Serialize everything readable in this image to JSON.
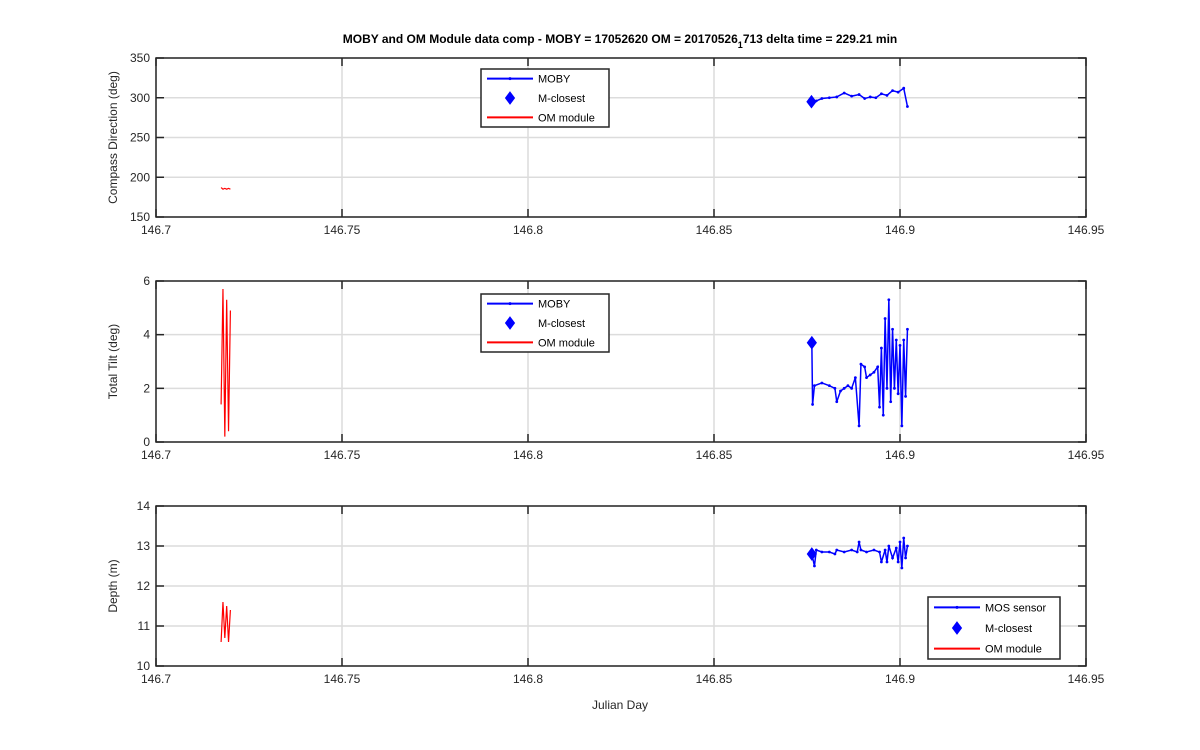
{
  "figure": {
    "title": "MOBY and OM Module data comp - MOBY = 17052620 OM = 20170526",
    "title_subscript": "1",
    "title_suffix": "713 delta time = 229.21 min",
    "xlabel": "Julian Day"
  },
  "colors": {
    "moby": "#0000ff",
    "om": "#ff0000",
    "grid": "#dcdcdc",
    "axis": "#262626"
  },
  "chart_data": [
    {
      "type": "line",
      "ylabel": "Compass Direction (deg)",
      "xlim": [
        146.7,
        146.95
      ],
      "ylim": [
        150,
        350
      ],
      "xticks": [
        "146.7",
        "146.75",
        "146.8",
        "146.85",
        "146.9",
        "146.95"
      ],
      "yticks": [
        "150",
        "200",
        "250",
        "300",
        "350"
      ],
      "grid": true,
      "legend": {
        "placement": "top-center",
        "entries": [
          "MOBY",
          "M-closest",
          "OM module"
        ]
      },
      "series": [
        {
          "name": "MOBY",
          "x": [
            146.8762,
            146.8775,
            146.879,
            146.881,
            146.883,
            146.885,
            146.887,
            146.889,
            146.8905,
            146.892,
            146.8935,
            146.895,
            146.8965,
            146.898,
            146.8995,
            146.901,
            146.902
          ],
          "y": [
            295,
            296,
            299,
            300,
            301,
            306,
            302,
            304,
            299,
            301,
            300,
            305,
            303,
            309,
            307,
            312,
            289
          ]
        },
        {
          "name": "M-closest",
          "x": [
            146.8762
          ],
          "y": [
            295
          ]
        },
        {
          "name": "OM module",
          "x": [
            146.7175,
            146.718,
            146.7185,
            146.719,
            146.7195,
            146.72
          ],
          "y": [
            187,
            185,
            186,
            185,
            186,
            185
          ]
        }
      ]
    },
    {
      "type": "line",
      "ylabel": "Total Tilt (deg)",
      "xlim": [
        146.7,
        146.95
      ],
      "ylim": [
        0,
        6
      ],
      "xticks": [
        "146.7",
        "146.75",
        "146.8",
        "146.85",
        "146.9",
        "146.95"
      ],
      "yticks": [
        "0",
        "2",
        "4",
        "6"
      ],
      "grid": true,
      "legend": {
        "placement": "top-center",
        "entries": [
          "MOBY",
          "M-closest",
          "OM module"
        ]
      },
      "series": [
        {
          "name": "MOBY",
          "x": [
            146.8763,
            146.8765,
            146.877,
            146.879,
            146.881,
            146.8825,
            146.883,
            146.884,
            146.885,
            146.886,
            146.887,
            146.888,
            146.889,
            146.8895,
            146.8905,
            146.891,
            146.892,
            146.893,
            146.894,
            146.8945,
            146.895,
            146.8955,
            146.896,
            146.8965,
            146.897,
            146.8975,
            146.898,
            146.8985,
            146.899,
            146.8995,
            146.9,
            146.9005,
            146.901,
            146.9015,
            146.902
          ],
          "y": [
            3.7,
            1.4,
            2.1,
            2.2,
            2.1,
            2.0,
            1.5,
            1.9,
            2.0,
            2.1,
            2.0,
            2.4,
            0.6,
            2.9,
            2.8,
            2.4,
            2.5,
            2.6,
            2.8,
            1.3,
            3.5,
            1.0,
            4.6,
            2.0,
            5.3,
            1.5,
            4.2,
            2.0,
            3.8,
            1.8,
            3.6,
            0.6,
            3.8,
            1.7,
            4.2
          ]
        },
        {
          "name": "M-closest",
          "x": [
            146.8763
          ],
          "y": [
            3.7
          ]
        },
        {
          "name": "OM module",
          "x": [
            146.7175,
            146.718,
            146.7185,
            146.719,
            146.7195,
            146.72
          ],
          "y": [
            1.4,
            5.7,
            0.2,
            5.3,
            0.4,
            4.9
          ]
        }
      ]
    },
    {
      "type": "line",
      "ylabel": "Depth (m)",
      "xlim": [
        146.7,
        146.95
      ],
      "ylim": [
        10,
        14
      ],
      "xticks": [
        "146.7",
        "146.75",
        "146.8",
        "146.85",
        "146.9",
        "146.95"
      ],
      "yticks": [
        "10",
        "11",
        "12",
        "13",
        "14"
      ],
      "grid": true,
      "legend": {
        "placement": "bottom-right",
        "entries": [
          "MOS sensor",
          "M-closest",
          "OM module"
        ]
      },
      "series": [
        {
          "name": "MOS sensor",
          "x": [
            146.8763,
            146.877,
            146.8775,
            146.879,
            146.881,
            146.8825,
            146.883,
            146.885,
            146.887,
            146.8885,
            146.889,
            146.8895,
            146.891,
            146.893,
            146.8945,
            146.895,
            146.896,
            146.8965,
            146.897,
            146.898,
            146.899,
            146.8995,
            146.9,
            146.9005,
            146.901,
            146.9015,
            146.902
          ],
          "y": [
            12.8,
            12.5,
            12.9,
            12.85,
            12.85,
            12.8,
            12.9,
            12.85,
            12.9,
            12.85,
            13.1,
            12.9,
            12.85,
            12.9,
            12.85,
            12.6,
            12.9,
            12.6,
            13.0,
            12.7,
            12.95,
            12.6,
            13.1,
            12.45,
            13.2,
            12.7,
            13.0
          ]
        },
        {
          "name": "M-closest",
          "x": [
            146.8763
          ],
          "y": [
            12.8
          ]
        },
        {
          "name": "OM module",
          "x": [
            146.7175,
            146.718,
            146.7185,
            146.719,
            146.7195,
            146.72
          ],
          "y": [
            10.6,
            11.6,
            10.7,
            11.5,
            10.6,
            11.4
          ]
        }
      ]
    }
  ]
}
